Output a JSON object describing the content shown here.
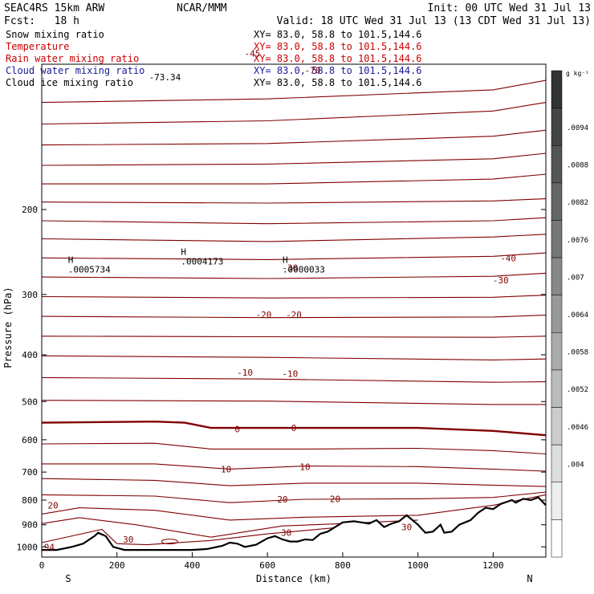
{
  "header": {
    "model": "SEAC4RS 15km ARW",
    "org": "NCAR/MMM",
    "init": "Init: 00 UTC Wed 31 Jul 13",
    "fcst": "Fcst:   18 h",
    "valid": "Valid: 18 UTC Wed 31 Jul 13 (13 CDT Wed 31 Jul 13)"
  },
  "legend": [
    {
      "name": "Snow mixing ratio",
      "xy": "XY=  83.0, 58.8 to 101.5,144.6",
      "color": "#000000"
    },
    {
      "name": "Temperature",
      "xy": "XY=  83.0, 58.8 to 101.5,144.6",
      "color": "#cc0000"
    },
    {
      "name": "Rain water mixing ratio",
      "xy": "XY=  83.0, 58.8 to 101.5,144.6",
      "color": "#cc0000"
    },
    {
      "name": "Cloud water mixing ratio",
      "xy": "XY=  83.0, 58.8 to 101.5,144.6",
      "color": "#1a1a99"
    },
    {
      "name": "Cloud ice mixing ratio",
      "xy": "XY=  83.0, 58.8 to 101.5,144.6",
      "color": "#000000"
    }
  ],
  "colorbar": {
    "unit": "g kg⁻¹",
    "labels": [
      ".0094",
      ".0088",
      ".0082",
      ".0076",
      ".007",
      ".0064",
      ".0058",
      ".0052",
      ".0046",
      ".004"
    ],
    "colors": [
      "#333333",
      "#444444",
      "#555555",
      "#666666",
      "#777777",
      "#888888",
      "#999999",
      "#aaaaaa",
      "#bbbbbb",
      "#cccccc",
      "#dddddd",
      "#eeeeee",
      "#ffffff"
    ]
  },
  "chart_data": {
    "type": "cross-section contour",
    "xlabel": "Distance (km)",
    "ylabel": "Pressure (hPa)",
    "xlim": [
      0,
      1340
    ],
    "ylim": [
      1050,
      100
    ],
    "xticks": [
      0,
      200,
      400,
      600,
      800,
      1000,
      1200
    ],
    "yticks": [
      200,
      300,
      400,
      500,
      600,
      700,
      800,
      900,
      1000
    ],
    "end_labels": {
      "left": "S",
      "right": "N"
    },
    "temperature_contour_color": "#800000",
    "temperature_contours_hpa": [
      [
        [
          0,
          120
        ],
        [
          600,
          118
        ],
        [
          1200,
          113
        ],
        [
          1340,
          108
        ]
      ],
      [
        [
          0,
          133
        ],
        [
          600,
          131
        ],
        [
          1200,
          125
        ],
        [
          1340,
          120
        ]
      ],
      [
        [
          0,
          147
        ],
        [
          600,
          146
        ],
        [
          1200,
          141
        ],
        [
          1340,
          137
        ]
      ],
      [
        [
          0,
          162
        ],
        [
          600,
          161
        ],
        [
          1200,
          157
        ],
        [
          1340,
          153
        ]
      ],
      [
        [
          0,
          177
        ],
        [
          600,
          177
        ],
        [
          1200,
          173
        ],
        [
          1340,
          169
        ]
      ],
      [
        [
          0,
          193
        ],
        [
          600,
          194
        ],
        [
          1200,
          192
        ],
        [
          1340,
          190
        ]
      ],
      [
        [
          0,
          211
        ],
        [
          600,
          214
        ],
        [
          1200,
          211
        ],
        [
          1340,
          208
        ]
      ],
      [
        [
          0,
          230
        ],
        [
          600,
          233
        ],
        [
          1200,
          228
        ],
        [
          1340,
          225
        ]
      ],
      [
        [
          0,
          252
        ],
        [
          600,
          254
        ],
        [
          1200,
          250
        ],
        [
          1340,
          246
        ]
      ],
      [
        [
          0,
          276
        ],
        [
          600,
          278
        ],
        [
          1200,
          275
        ],
        [
          1340,
          271
        ]
      ],
      [
        [
          0,
          303
        ],
        [
          600,
          305
        ],
        [
          1200,
          304
        ],
        [
          1340,
          301
        ]
      ],
      [
        [
          0,
          333
        ],
        [
          600,
          335
        ],
        [
          1200,
          334
        ],
        [
          1340,
          331
        ]
      ],
      [
        [
          0,
          366
        ],
        [
          600,
          367
        ],
        [
          1200,
          368
        ],
        [
          1340,
          366
        ]
      ],
      [
        [
          0,
          402
        ],
        [
          600,
          405
        ],
        [
          1200,
          410
        ],
        [
          1340,
          408
        ]
      ],
      [
        [
          0,
          446
        ],
        [
          600,
          449
        ],
        [
          1200,
          456
        ],
        [
          1340,
          455
        ]
      ],
      [
        [
          0,
          497
        ],
        [
          600,
          499
        ],
        [
          1200,
          507
        ],
        [
          1340,
          507
        ]
      ],
      [
        [
          0,
          553
        ],
        [
          300,
          550
        ],
        [
          380,
          553
        ],
        [
          450,
          567
        ],
        [
          700,
          567
        ],
        [
          1000,
          567
        ],
        [
          1200,
          575
        ],
        [
          1340,
          587
        ]
      ],
      [
        [
          0,
          612
        ],
        [
          300,
          610
        ],
        [
          450,
          627
        ],
        [
          700,
          627
        ],
        [
          1000,
          625
        ],
        [
          1200,
          632
        ],
        [
          1340,
          642
        ]
      ],
      [
        [
          0,
          673
        ],
        [
          300,
          673
        ],
        [
          500,
          690
        ],
        [
          700,
          680
        ],
        [
          1000,
          682
        ],
        [
          1200,
          690
        ],
        [
          1340,
          697
        ]
      ],
      [
        [
          0,
          722
        ],
        [
          300,
          728
        ],
        [
          500,
          747
        ],
        [
          700,
          738
        ],
        [
          1000,
          738
        ],
        [
          1200,
          745
        ],
        [
          1340,
          750
        ]
      ],
      [
        [
          0,
          780
        ],
        [
          300,
          785
        ],
        [
          500,
          810
        ],
        [
          700,
          797
        ],
        [
          1000,
          795
        ],
        [
          1200,
          790
        ],
        [
          1340,
          770
        ]
      ],
      [
        [
          0,
          855
        ],
        [
          100,
          830
        ],
        [
          300,
          840
        ],
        [
          500,
          880
        ],
        [
          700,
          868
        ],
        [
          1000,
          860
        ],
        [
          1200,
          820
        ],
        [
          1340,
          780
        ]
      ],
      [
        [
          0,
          895
        ],
        [
          100,
          870
        ],
        [
          250,
          900
        ],
        [
          450,
          955
        ],
        [
          640,
          905
        ],
        [
          800,
          895
        ],
        [
          1000,
          880
        ]
      ],
      [
        [
          0,
          980
        ],
        [
          160,
          920
        ],
        [
          200,
          985
        ],
        [
          280,
          990
        ],
        [
          450,
          970
        ],
        [
          600,
          940
        ],
        [
          800,
          910
        ]
      ]
    ],
    "temperature_labels": [
      {
        "x": 560,
        "p": 95,
        "text": "-45"
      },
      {
        "x": 720,
        "p": 103,
        "text": "-70"
      },
      {
        "x": 1240,
        "p": 252,
        "text": "-40"
      },
      {
        "x": 1220,
        "p": 280,
        "text": "-30"
      },
      {
        "x": 660,
        "p": 264,
        "text": "-30"
      },
      {
        "x": 590,
        "p": 330,
        "text": "-20"
      },
      {
        "x": 670,
        "p": 330,
        "text": "-20"
      },
      {
        "x": 540,
        "p": 435,
        "text": "-10"
      },
      {
        "x": 660,
        "p": 438,
        "text": "-10"
      },
      {
        "x": 520,
        "p": 570,
        "text": "0"
      },
      {
        "x": 670,
        "p": 567,
        "text": "0"
      },
      {
        "x": 490,
        "p": 690,
        "text": "10"
      },
      {
        "x": 700,
        "p": 682,
        "text": "10"
      },
      {
        "x": 640,
        "p": 797,
        "text": "20"
      },
      {
        "x": 780,
        "p": 795,
        "text": "20"
      },
      {
        "x": 30,
        "p": 820,
        "text": "20"
      },
      {
        "x": 650,
        "p": 935,
        "text": "30"
      },
      {
        "x": 230,
        "p": 965,
        "text": "30"
      },
      {
        "x": 970,
        "p": 910,
        "text": "30"
      },
      {
        "x": 20,
        "p": 1000,
        "text": "94"
      }
    ],
    "maxima": [
      {
        "x": 70,
        "p": 262,
        "text": ".0005734"
      },
      {
        "x": 370,
        "p": 252,
        "text": ".0004173"
      },
      {
        "x": 640,
        "p": 262,
        "text": ".0000033"
      }
    ],
    "corner_label": "-73.34",
    "terrain_hpa": [
      [
        0,
        1015
      ],
      [
        40,
        1015
      ],
      [
        80,
        1000
      ],
      [
        110,
        985
      ],
      [
        140,
        950
      ],
      [
        150,
        935
      ],
      [
        170,
        950
      ],
      [
        190,
        1000
      ],
      [
        220,
        1015
      ],
      [
        300,
        1015
      ],
      [
        400,
        1015
      ],
      [
        440,
        1010
      ],
      [
        480,
        995
      ],
      [
        500,
        980
      ],
      [
        520,
        985
      ],
      [
        540,
        1000
      ],
      [
        570,
        990
      ],
      [
        600,
        960
      ],
      [
        620,
        950
      ],
      [
        640,
        965
      ],
      [
        660,
        975
      ],
      [
        680,
        975
      ],
      [
        700,
        965
      ],
      [
        720,
        968
      ],
      [
        740,
        940
      ],
      [
        760,
        930
      ],
      [
        780,
        910
      ],
      [
        800,
        890
      ],
      [
        830,
        885
      ],
      [
        850,
        890
      ],
      [
        870,
        895
      ],
      [
        890,
        880
      ],
      [
        910,
        910
      ],
      [
        930,
        895
      ],
      [
        950,
        885
      ],
      [
        970,
        860
      ],
      [
        1000,
        900
      ],
      [
        1020,
        935
      ],
      [
        1040,
        930
      ],
      [
        1060,
        900
      ],
      [
        1070,
        935
      ],
      [
        1090,
        930
      ],
      [
        1110,
        900
      ],
      [
        1140,
        880
      ],
      [
        1160,
        850
      ],
      [
        1170,
        840
      ],
      [
        1180,
        830
      ],
      [
        1200,
        835
      ],
      [
        1220,
        815
      ],
      [
        1250,
        800
      ],
      [
        1260,
        810
      ],
      [
        1280,
        795
      ],
      [
        1300,
        800
      ],
      [
        1320,
        790
      ],
      [
        1340,
        820
      ]
    ]
  }
}
